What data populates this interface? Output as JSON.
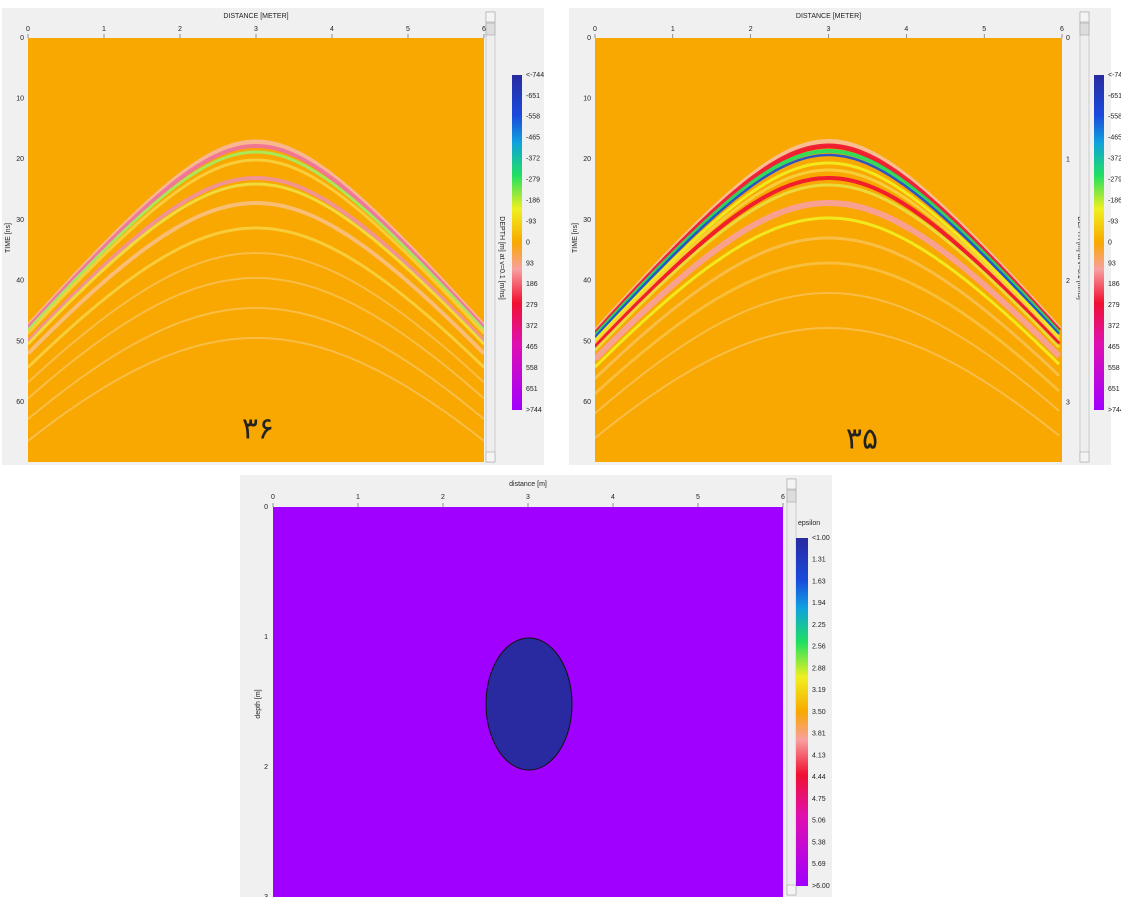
{
  "panels": [
    {
      "x_axis_title": "DISTANCE [METER]",
      "x_ticks": [
        "0",
        "1",
        "2",
        "3",
        "4",
        "5",
        "6"
      ],
      "y_axis_title": "TIME [ns]",
      "y_ticks": [
        "0",
        "10",
        "20",
        "30",
        "40",
        "50",
        "60"
      ],
      "y2_axis_title": "DEPTH [m] at v=0.1 [m/ns]",
      "y2_ticks": [
        "0",
        "1",
        "2",
        "3"
      ],
      "colorbar_labels": [
        "<-744",
        "-651",
        "-558",
        "-465",
        "-372",
        "-279",
        "-186",
        "-93",
        "0",
        "93",
        "186",
        "279",
        "372",
        "465",
        "558",
        "651",
        ">744"
      ],
      "caption": "۳۶"
    },
    {
      "x_axis_title": "DISTANCE [METER]",
      "x_ticks": [
        "0",
        "1",
        "2",
        "3",
        "4",
        "5",
        "6"
      ],
      "y_axis_title": "TIME [ns]",
      "y_ticks": [
        "0",
        "10",
        "20",
        "30",
        "40",
        "50",
        "60"
      ],
      "y2_axis_title": "DEPTH [m] at v=0.1 [m/ns]",
      "y2_ticks": [
        "0",
        "1",
        "2",
        "3"
      ],
      "colorbar_labels": [
        "<-744",
        "-651",
        "-558",
        "-465",
        "-372",
        "-279",
        "-186",
        "-93",
        "0",
        "93",
        "186",
        "279",
        "372",
        "465",
        "558",
        "651",
        ">744"
      ],
      "caption": "۳۵"
    }
  ],
  "model": {
    "x_axis_title": "distance [m]",
    "x_ticks": [
      "0",
      "1",
      "2",
      "3",
      "4",
      "5",
      "6"
    ],
    "y_axis_title": "depth [m]",
    "y_ticks": [
      "0",
      "1",
      "2",
      "3"
    ],
    "colorbar_title": "epsilon",
    "colorbar_labels": [
      "<1.00",
      "1.31",
      "1.63",
      "1.94",
      "2.25",
      "2.56",
      "2.88",
      "3.19",
      "3.50",
      "3.81",
      "4.13",
      "4.44",
      "4.75",
      "5.06",
      "5.38",
      "5.69",
      ">6.00"
    ]
  }
}
